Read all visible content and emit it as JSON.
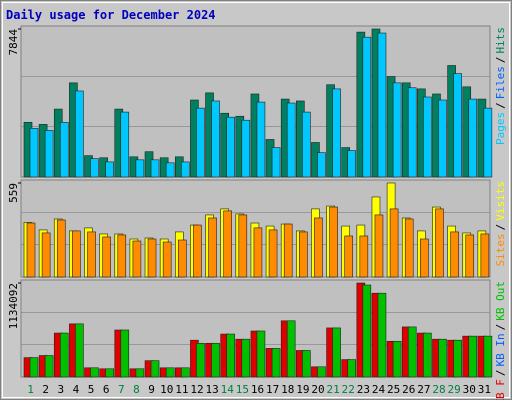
{
  "chart_data": [
    {
      "type": "bar",
      "title": "Daily usage for December 2024",
      "ylim": [
        0,
        7844
      ],
      "yticks": [
        7844
      ],
      "legend_reverse": true,
      "legend_separator": "/",
      "series": [
        {
          "name": "Hits",
          "color": "#008060",
          "values": [
            2900,
            2790,
            3600,
            4990,
            1130,
            1020,
            3600,
            1070,
            1340,
            1020,
            1070,
            4080,
            4460,
            3380,
            3220,
            4400,
            1990,
            4130,
            4030,
            1830,
            4890,
            1560,
            7680,
            7844,
            5320,
            4990,
            4670,
            4400,
            5910,
            4780,
            4130
          ]
        },
        {
          "name": "Files",
          "color": "#0060ff",
          "values": [
            null,
            null,
            null,
            null,
            null,
            null,
            null,
            null,
            null,
            null,
            null,
            null,
            null,
            null,
            null,
            null,
            null,
            null,
            null,
            null,
            null,
            null,
            null,
            null,
            null,
            null,
            null,
            null,
            null,
            null,
            null
          ]
        },
        {
          "name": "Pages",
          "color": "#00c8ff",
          "values": [
            2580,
            2470,
            2900,
            4560,
            970,
            800,
            3440,
            910,
            910,
            750,
            800,
            3650,
            4030,
            3170,
            3010,
            3970,
            1560,
            3920,
            3440,
            1290,
            4670,
            1400,
            7410,
            7630,
            4990,
            4730,
            4240,
            4080,
            5480,
            4130,
            3650
          ]
        }
      ]
    },
    {
      "type": "bar",
      "ylim": [
        0,
        559
      ],
      "yticks": [
        559
      ],
      "legend_reverse": true,
      "legend_separator": "/",
      "series": [
        {
          "name": "Visits",
          "color": "#ffff00",
          "values": [
            325,
            280,
            345,
            274,
            292,
            256,
            256,
            226,
            232,
            226,
            268,
            309,
            369,
            405,
            375,
            321,
            303,
            315,
            274,
            405,
            422,
            303,
            309,
            476,
            559,
            351,
            274,
            416,
            303,
            262,
            274
          ]
        },
        {
          "name": "Sites",
          "color": "#ff8c00",
          "values": [
            321,
            262,
            339,
            274,
            268,
            238,
            250,
            214,
            226,
            208,
            220,
            309,
            351,
            393,
            369,
            292,
            280,
            315,
            268,
            351,
            416,
            244,
            244,
            369,
            405,
            345,
            226,
            405,
            268,
            250,
            256
          ]
        }
      ]
    },
    {
      "type": "bar",
      "ylim": [
        0,
        1134092
      ],
      "yticks": [
        1134092
      ],
      "legend_reverse": false,
      "legend_separator": "/",
      "categories": [
        "1",
        "2",
        "3",
        "4",
        "5",
        "6",
        "7",
        "8",
        "9",
        "10",
        "11",
        "12",
        "13",
        "14",
        "15",
        "16",
        "17",
        "18",
        "19",
        "20",
        "21",
        "22",
        "23",
        "24",
        "25",
        "26",
        "27",
        "28",
        "29",
        "30",
        "31"
      ],
      "highlight_indices": [
        0,
        6,
        7,
        13,
        14,
        20,
        21,
        27,
        28
      ],
      "highlight_color": "#008040",
      "series": [
        {
          "name": "KB F",
          "color": "#e00000",
          "values": [
            234000,
            259000,
            530000,
            641000,
            111000,
            99000,
            567000,
            99000,
            197000,
            111000,
            111000,
            444000,
            407000,
            518000,
            456000,
            555000,
            345000,
            678000,
            320000,
            123000,
            592000,
            210000,
            1134092,
            1011000,
            431000,
            604000,
            530000,
            456000,
            444000,
            493000,
            493000
          ]
        },
        {
          "name": "KB In",
          "color": "#0060ff",
          "values": [
            null,
            null,
            null,
            null,
            null,
            null,
            null,
            null,
            null,
            null,
            null,
            null,
            null,
            null,
            null,
            null,
            null,
            null,
            null,
            null,
            null,
            null,
            null,
            null,
            null,
            null,
            null,
            null,
            null,
            null,
            null
          ]
        },
        {
          "name": "KB Out",
          "color": "#00c000",
          "values": [
            234000,
            259000,
            530000,
            641000,
            111000,
            99000,
            567000,
            99000,
            197000,
            111000,
            111000,
            407000,
            407000,
            518000,
            456000,
            555000,
            345000,
            678000,
            320000,
            123000,
            592000,
            210000,
            1110000,
            1011000,
            431000,
            604000,
            530000,
            456000,
            444000,
            493000,
            493000
          ]
        }
      ]
    }
  ]
}
